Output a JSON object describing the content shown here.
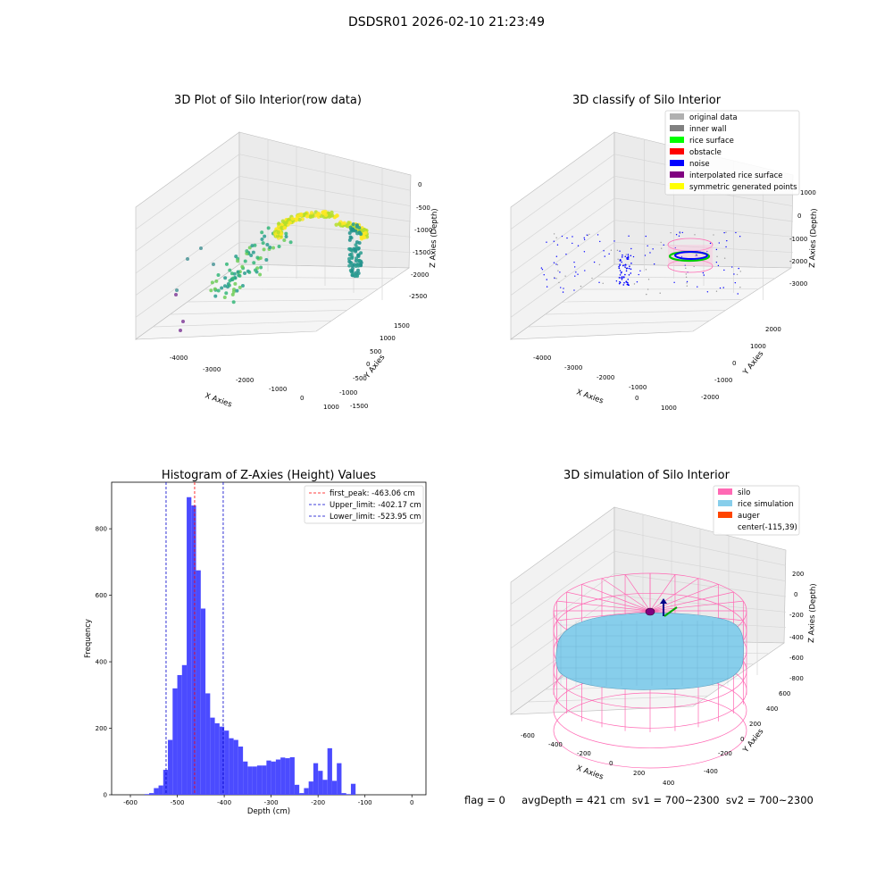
{
  "suptitle": "DSDSR01 2026-02-10 21:23:49",
  "colors": {
    "hist": "#4b4bff",
    "peak_line": "#ff0000",
    "limit_line": "#0000cc",
    "silo": "#ff69b4",
    "rice": "#87ceeb",
    "auger": "#ff4500",
    "rice_surface": "#00ff00",
    "noise": "#0000ff",
    "original": "#b0b0b0",
    "inner_wall": "#808080",
    "obstacle": "#ff0000",
    "interpolated": "#800080",
    "symmetric": "#ffff00"
  },
  "panel1": {
    "title": "3D Plot of Silo Interior(row data)",
    "xlabel": "X Axies",
    "ylabel": "Y Axies",
    "zlabel": "Z Axies (Depth)",
    "xticks": [
      "-4000",
      "-3000",
      "-2000",
      "-1000",
      "0",
      "1000"
    ],
    "yticks": [
      "-1500",
      "-1000",
      "-500",
      "0",
      "500",
      "1000",
      "1500"
    ],
    "zticks": [
      "0",
      "-500",
      "-1000",
      "-1500",
      "-2000",
      "-2500"
    ]
  },
  "panel2": {
    "title": "3D classify of Silo Interior",
    "xlabel": "X Axies",
    "ylabel": "Y Axies",
    "zlabel": "Z Axies (Depth)",
    "xticks": [
      "-4000",
      "-3000",
      "-2000",
      "-1000",
      "0",
      "1000"
    ],
    "yticks": [
      "-2000",
      "-1000",
      "0",
      "1000",
      "2000"
    ],
    "zticks": [
      "1000",
      "0",
      "-1000",
      "-2000",
      "-3000"
    ],
    "legend": [
      {
        "label": "original data",
        "color": "#b0b0b0"
      },
      {
        "label": "inner wall",
        "color": "#808080"
      },
      {
        "label": "rice surface",
        "color": "#00ff00"
      },
      {
        "label": "obstacle",
        "color": "#ff0000"
      },
      {
        "label": "noise",
        "color": "#0000ff"
      },
      {
        "label": "interpolated rice surface",
        "color": "#800080"
      },
      {
        "label": "symmetric generated points",
        "color": "#ffff00"
      }
    ]
  },
  "panel4": {
    "title": "3D simulation of Silo Interior",
    "xlabel": "X Axies",
    "ylabel": "Y Axies",
    "zlabel": "Z Axies (Depth)",
    "xticks": [
      "-600",
      "-400",
      "-200",
      "0",
      "200",
      "400"
    ],
    "yticks": [
      "-400",
      "-200",
      "0",
      "200",
      "400",
      "600"
    ],
    "zticks": [
      "200",
      "0",
      "-200",
      "-400",
      "-600",
      "-800"
    ],
    "legend": [
      {
        "label": "silo",
        "color": "#ff69b4"
      },
      {
        "label": "rice simulation",
        "color": "#87ceeb"
      },
      {
        "label": "auger",
        "color": "#ff4500"
      },
      {
        "label": "center(-115,39)",
        "color": ""
      }
    ]
  },
  "status_line": "flag = 0     avgDepth = 421 cm  sv1 = 700~2300  sv2 = 700~2300",
  "chart_data": {
    "type": "bar",
    "title": "Histogram of Z-Axies (Height) Values",
    "xlabel": "Depth (cm)",
    "ylabel": "Frequency",
    "xlim": [
      -640,
      30
    ],
    "ylim": [
      0,
      940
    ],
    "xticks": [
      -600,
      -500,
      -400,
      -300,
      -200,
      -100,
      0
    ],
    "yticks": [
      0,
      200,
      400,
      600,
      800
    ],
    "bin_width": 10,
    "bins": [
      {
        "x": -570,
        "v": 2
      },
      {
        "x": -560,
        "v": 5
      },
      {
        "x": -550,
        "v": 20
      },
      {
        "x": -540,
        "v": 28
      },
      {
        "x": -530,
        "v": 75
      },
      {
        "x": -520,
        "v": 165
      },
      {
        "x": -510,
        "v": 320
      },
      {
        "x": -500,
        "v": 360
      },
      {
        "x": -490,
        "v": 390
      },
      {
        "x": -480,
        "v": 895
      },
      {
        "x": -470,
        "v": 870
      },
      {
        "x": -460,
        "v": 675
      },
      {
        "x": -450,
        "v": 560
      },
      {
        "x": -440,
        "v": 305
      },
      {
        "x": -430,
        "v": 232
      },
      {
        "x": -420,
        "v": 215
      },
      {
        "x": -410,
        "v": 205
      },
      {
        "x": -400,
        "v": 193
      },
      {
        "x": -390,
        "v": 170
      },
      {
        "x": -380,
        "v": 165
      },
      {
        "x": -370,
        "v": 145
      },
      {
        "x": -360,
        "v": 100
      },
      {
        "x": -350,
        "v": 85
      },
      {
        "x": -340,
        "v": 85
      },
      {
        "x": -330,
        "v": 88
      },
      {
        "x": -320,
        "v": 88
      },
      {
        "x": -310,
        "v": 103
      },
      {
        "x": -300,
        "v": 100
      },
      {
        "x": -290,
        "v": 106
      },
      {
        "x": -280,
        "v": 112
      },
      {
        "x": -270,
        "v": 110
      },
      {
        "x": -260,
        "v": 113
      },
      {
        "x": -250,
        "v": 30
      },
      {
        "x": -240,
        "v": 5
      },
      {
        "x": -230,
        "v": 20
      },
      {
        "x": -220,
        "v": 40
      },
      {
        "x": -210,
        "v": 95
      },
      {
        "x": -200,
        "v": 72
      },
      {
        "x": -190,
        "v": 45
      },
      {
        "x": -180,
        "v": 140
      },
      {
        "x": -170,
        "v": 42
      },
      {
        "x": -160,
        "v": 95
      },
      {
        "x": -150,
        "v": 5
      },
      {
        "x": -140,
        "v": 2
      },
      {
        "x": -130,
        "v": 33
      }
    ],
    "vlines": [
      {
        "label": "first_peak: -463.06 cm",
        "x": -463.06,
        "color": "#ff0000"
      },
      {
        "label": "Upper_limit: -402.17 cm",
        "x": -402.17,
        "color": "#0000cc"
      },
      {
        "label": "Lower_limit: -523.95 cm",
        "x": -523.95,
        "color": "#0000cc"
      }
    ]
  }
}
